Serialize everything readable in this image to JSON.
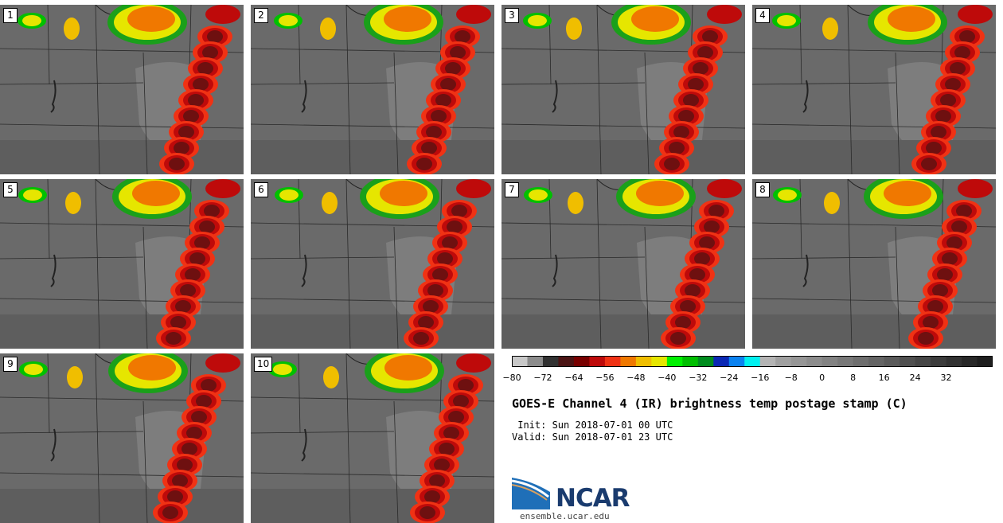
{
  "panels": [
    {
      "label": "1"
    },
    {
      "label": "2"
    },
    {
      "label": "3"
    },
    {
      "label": "4"
    },
    {
      "label": "5"
    },
    {
      "label": "6"
    },
    {
      "label": "7"
    },
    {
      "label": "8"
    },
    {
      "label": "9"
    },
    {
      "label": "10"
    }
  ],
  "colorbar": {
    "ticks": [
      "−80",
      "−72",
      "−64",
      "−56",
      "−48",
      "−40",
      "−32",
      "−24",
      "−16",
      "−8",
      "0",
      "8",
      "16",
      "24",
      "32"
    ],
    "colors": [
      "#c8c8c8",
      "#8c8c8c",
      "#323232",
      "#4b1414",
      "#780000",
      "#be0a0a",
      "#f03214",
      "#f07800",
      "#f0be00",
      "#e6e600",
      "#00f000",
      "#00be00",
      "#008c1e",
      "#0a28b4",
      "#0a82f0",
      "#00f0f0",
      "#b4b4b4",
      "#a0a0a0",
      "#969696",
      "#8c8c8c",
      "#828282",
      "#787878",
      "#6e6e6e",
      "#646464",
      "#5a5a5a",
      "#505050",
      "#464646",
      "#3c3c3c",
      "#323232",
      "#282828",
      "#1e1e1e"
    ]
  },
  "title": "GOES-E Channel 4 (IR) brightness temp postage stamp (C)",
  "init": " Init: Sun 2018-07-01 00 UTC",
  "valid": "Valid: Sun 2018-07-01 23 UTC",
  "logo": {
    "name": "NCAR",
    "url": "ensemble.ucar.edu"
  }
}
